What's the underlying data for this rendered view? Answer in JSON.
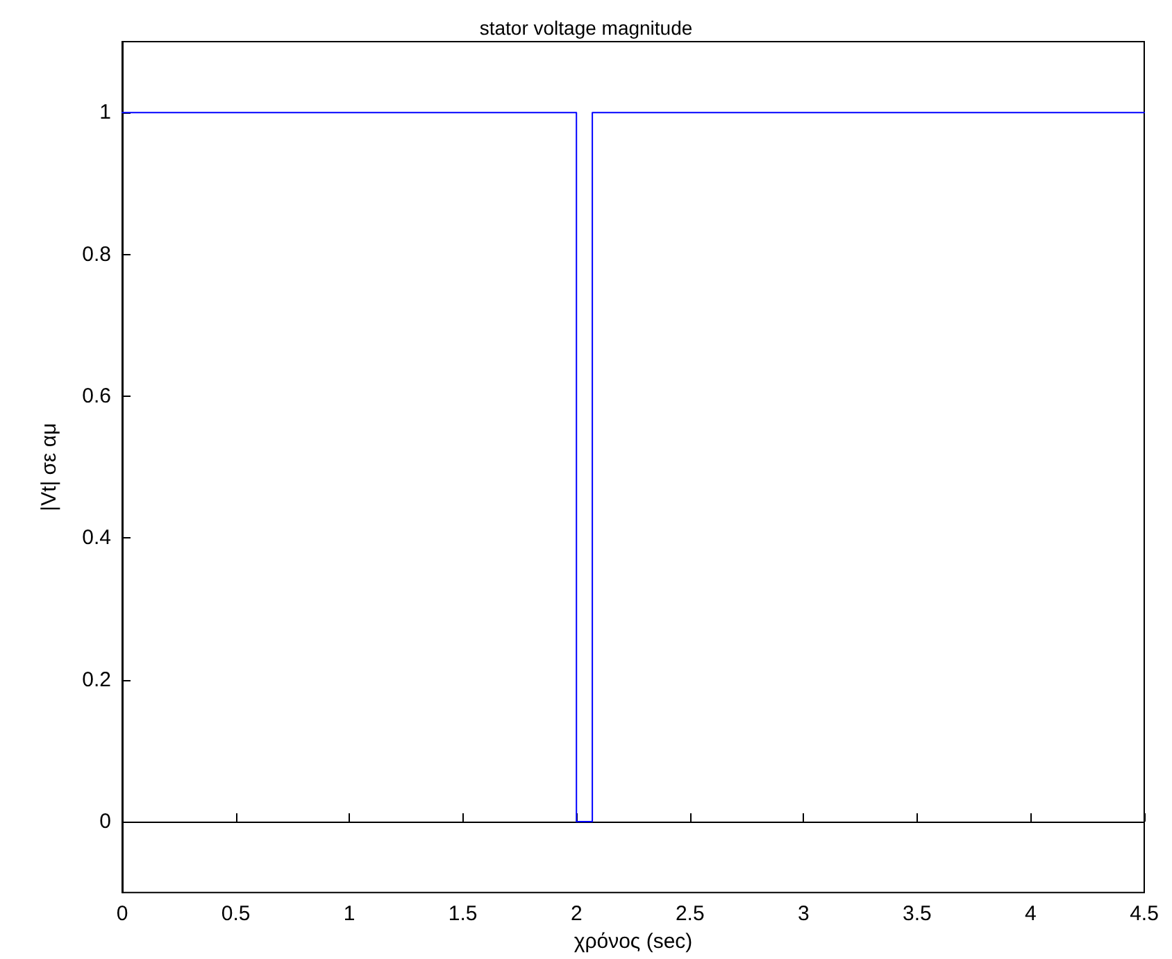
{
  "chart_data": {
    "type": "line",
    "title": "stator voltage magnitude",
    "xlabel": "χρόνος (sec)",
    "ylabel": "|Vt| σε αμ",
    "x": [
      0,
      2,
      2,
      2.07,
      2.07,
      4.5
    ],
    "series": [
      {
        "color": "#0000ff",
        "values": [
          1,
          1,
          0,
          0,
          1,
          1
        ]
      }
    ],
    "xlim": [
      0,
      4.5
    ],
    "xticks": [
      0,
      0.5,
      1,
      1.5,
      2,
      2.5,
      3,
      3.5,
      4,
      4.5
    ],
    "ylim": [
      -0.1,
      1.1
    ],
    "yticks": [
      0,
      0.2,
      0.4,
      0.6,
      0.8,
      1
    ],
    "marker": "none",
    "line_style": "solid"
  }
}
